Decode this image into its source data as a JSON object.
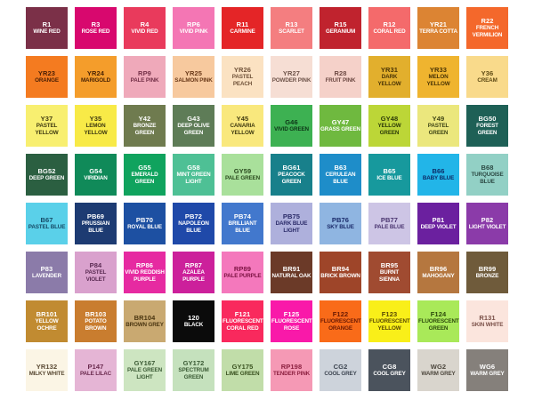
{
  "chart_data": {
    "type": "table",
    "title": "Marker color swatch chart",
    "layout": {
      "columns": 10,
      "rows": 8,
      "background": "#ffffff"
    },
    "swatches": [
      {
        "code": "R1",
        "name": "WINE RED",
        "bg": "#7B3048",
        "text": "#FFFFFF"
      },
      {
        "code": "R3",
        "name": "ROSE RED",
        "bg": "#D8086E",
        "text": "#FFFFFF"
      },
      {
        "code": "R4",
        "name": "VIVID RED",
        "bg": "#E93A5C",
        "text": "#FFFFFF"
      },
      {
        "code": "RP6",
        "name": "VIVID PINK",
        "bg": "#F476B4",
        "text": "#FFFFFF"
      },
      {
        "code": "R11",
        "name": "CARMINE",
        "bg": "#E42527",
        "text": "#FFFFFF"
      },
      {
        "code": "R13",
        "name": "SCARLET",
        "bg": "#F47E80",
        "text": "#FFFFFF"
      },
      {
        "code": "R15",
        "name": "GERANIUM",
        "bg": "#C0232E",
        "text": "#FFFFFF"
      },
      {
        "code": "R12",
        "name": "CORAL RED",
        "bg": "#F46A6B",
        "text": "#FFFFFF"
      },
      {
        "code": "YR21",
        "name": "TERRA COTTA",
        "bg": "#DC8433",
        "text": "#FFFFFF"
      },
      {
        "code": "R22",
        "name": "FRENCH VERMILION",
        "bg": "#F4682B",
        "text": "#FFFFFF"
      },
      {
        "code": "YR23",
        "name": "ORANGE",
        "bg": "#F47B20",
        "text": "#4A1F05"
      },
      {
        "code": "YR24",
        "name": "MARIGOLD",
        "bg": "#F49D2B",
        "text": "#4A2405"
      },
      {
        "code": "RP9",
        "name": "PALE PINK",
        "bg": "#EFA9BA",
        "text": "#743048"
      },
      {
        "code": "YR25",
        "name": "SALMON PINK",
        "bg": "#F7C99E",
        "text": "#6B3A1A"
      },
      {
        "code": "YR26",
        "name": "PASTEL PEACH",
        "bg": "#FBE2C2",
        "text": "#6F5138"
      },
      {
        "code": "YR27",
        "name": "POWDER PINK",
        "bg": "#F6DED4",
        "text": "#6E544A"
      },
      {
        "code": "R28",
        "name": "FRUIT PINK",
        "bg": "#F5D1C9",
        "text": "#6E4A44"
      },
      {
        "code": "YR31",
        "name": "DARK YELLOW",
        "bg": "#E2AF2D",
        "text": "#4A3405"
      },
      {
        "code": "YR33",
        "name": "MELON YELLOW",
        "bg": "#EFB42F",
        "text": "#4A3405"
      },
      {
        "code": "Y36",
        "name": "CREAM",
        "bg": "#F9DA8B",
        "text": "#5E4A14"
      },
      {
        "code": "Y37",
        "name": "PASTEL YELLOW",
        "bg": "#F8EF70",
        "text": "#3F3A10"
      },
      {
        "code": "Y35",
        "name": "LEMON YELLOW",
        "bg": "#F8EA47",
        "text": "#3F3A10"
      },
      {
        "code": "Y42",
        "name": "BRONZE GREEN",
        "bg": "#6F7B4F",
        "text": "#FFFFFF"
      },
      {
        "code": "G43",
        "name": "DEEP OLIVE GREEN",
        "bg": "#5E7C57",
        "text": "#FFFFFF"
      },
      {
        "code": "Y45",
        "name": "CANARIA YELLOW",
        "bg": "#F9E87D",
        "text": "#3F3A10"
      },
      {
        "code": "G46",
        "name": "VIVID GREEN",
        "bg": "#3DB152",
        "text": "#0D3517"
      },
      {
        "code": "GY47",
        "name": "GRASS GREEN",
        "bg": "#6FB93F",
        "text": "#FFFFFF"
      },
      {
        "code": "GY48",
        "name": "YELLOW GREEN",
        "bg": "#BCD637",
        "text": "#2C3A08"
      },
      {
        "code": "Y49",
        "name": "PASTEL GREEN",
        "bg": "#EBE77D",
        "text": "#3E4414"
      },
      {
        "code": "BG50",
        "name": "FOREST GREEN",
        "bg": "#1E6056",
        "text": "#FFFFFF"
      },
      {
        "code": "BG52",
        "name": "DEEP GREEN",
        "bg": "#2B5F41",
        "text": "#FFFFFF"
      },
      {
        "code": "G54",
        "name": "VIRIDIAN",
        "bg": "#108A59",
        "text": "#FFFFFF"
      },
      {
        "code": "G55",
        "name": "EMERALD GREEN",
        "bg": "#10A35E",
        "text": "#FFFFFF"
      },
      {
        "code": "G58",
        "name": "MINT GREEN LIGHT",
        "bg": "#4EC095",
        "text": "#FFFFFF"
      },
      {
        "code": "GY59",
        "name": "PALE GREEN",
        "bg": "#A9E09B",
        "text": "#2A4A1E"
      },
      {
        "code": "BG61",
        "name": "PEACOCK GREEN",
        "bg": "#18808B",
        "text": "#FFFFFF"
      },
      {
        "code": "B63",
        "name": "CERULEAN BLUE",
        "bg": "#1E8DC9",
        "text": "#FFFFFF"
      },
      {
        "code": "B65",
        "name": "ICE BLUE",
        "bg": "#17999D",
        "text": "#FFFFFF"
      },
      {
        "code": "B66",
        "name": "BABY BLUE",
        "bg": "#22B5E8",
        "text": "#0C2A66"
      },
      {
        "code": "B68",
        "name": "TURQUOISE BLUE",
        "bg": "#92D0C5",
        "text": "#2C4A44"
      },
      {
        "code": "B67",
        "name": "PASTEL BLUE",
        "bg": "#5AD0E9",
        "text": "#164A66"
      },
      {
        "code": "PB69",
        "name": "PRUSSIAN BLUE",
        "bg": "#1D3B72",
        "text": "#FFFFFF"
      },
      {
        "code": "PB70",
        "name": "ROYAL BLUE",
        "bg": "#1D50A2",
        "text": "#FFFFFF"
      },
      {
        "code": "PB72",
        "name": "NAPOLEON BLUE",
        "bg": "#1F49A9",
        "text": "#FFFFFF"
      },
      {
        "code": "PB74",
        "name": "BRILLIANT BLUE",
        "bg": "#4278CD",
        "text": "#FFFFFF"
      },
      {
        "code": "PB75",
        "name": "DARK BLUE LIGHT",
        "bg": "#AEB0DC",
        "text": "#2A2A68"
      },
      {
        "code": "PB76",
        "name": "SKY BLUE",
        "bg": "#8FB5E1",
        "text": "#1A2A6A"
      },
      {
        "code": "PB77",
        "name": "PALE BLUE",
        "bg": "#CDC5E5",
        "text": "#4A3570"
      },
      {
        "code": "P81",
        "name": "DEEP VIOLET",
        "bg": "#6B209F",
        "text": "#FFFFFF"
      },
      {
        "code": "P82",
        "name": "LIGHT VIOLET",
        "bg": "#8B3BA9",
        "text": "#FFFFFF"
      },
      {
        "code": "P83",
        "name": "LAVENDER",
        "bg": "#8B7BA9",
        "text": "#FFFFFF"
      },
      {
        "code": "P84",
        "name": "PASTEL VIOLET",
        "bg": "#D9A1CD",
        "text": "#5A2A52"
      },
      {
        "code": "RP86",
        "name": "VIVID REDDISH PURPLE",
        "bg": "#E62AA1",
        "text": "#FFFFFF"
      },
      {
        "code": "RP87",
        "name": "AZALEA PURPLE",
        "bg": "#CC209B",
        "text": "#FFFFFF"
      },
      {
        "code": "RP89",
        "name": "PALE PURPLE",
        "bg": "#F478BC",
        "text": "#7C1242"
      },
      {
        "code": "BR91",
        "name": "NATURAL OAK",
        "bg": "#6B3A28",
        "text": "#FFFFFF"
      },
      {
        "code": "BR94",
        "name": "BRICK BROWN",
        "bg": "#9E4529",
        "text": "#FFFFFF"
      },
      {
        "code": "BR95",
        "name": "BURNT SIENNA",
        "bg": "#A04B31",
        "text": "#FFFFFF"
      },
      {
        "code": "BR96",
        "name": "MAHOGANY",
        "bg": "#B5773F",
        "text": "#FFFFFF"
      },
      {
        "code": "BR99",
        "name": "BRONZE",
        "bg": "#6F5B3B",
        "text": "#FFFFFF"
      },
      {
        "code": "BR101",
        "name": "YELLOW OCHRE",
        "bg": "#C18B31",
        "text": "#FFFFFF"
      },
      {
        "code": "BR103",
        "name": "POTATO BROWN",
        "bg": "#C97D2F",
        "text": "#FFFFFF"
      },
      {
        "code": "BR104",
        "name": "BROWN GREY",
        "bg": "#C9A971",
        "text": "#4A3510"
      },
      {
        "code": "120",
        "name": "BLACK",
        "bg": "#0B0B0B",
        "text": "#FFFFFF"
      },
      {
        "code": "F121",
        "name": "FLUORESCENT CORAL RED",
        "bg": "#F9295D",
        "text": "#FFFFFF"
      },
      {
        "code": "F125",
        "name": "FLUORESCENT ROSE",
        "bg": "#F919A9",
        "text": "#FFFFFF"
      },
      {
        "code": "F122",
        "name": "FLUORESCENT ORANGE",
        "bg": "#F96B19",
        "text": "#6A1A04"
      },
      {
        "code": "F123",
        "name": "FLUORESCENT YELLOW",
        "bg": "#F9EF19",
        "text": "#5A4A04"
      },
      {
        "code": "F124",
        "name": "FLUORESCENT GREEN",
        "bg": "#A9E959",
        "text": "#2C4A0C"
      },
      {
        "code": "R131",
        "name": "SKIN WHITE",
        "bg": "#FBE5DD",
        "text": "#7A5048"
      },
      {
        "code": "YR132",
        "name": "MILKY WHITE",
        "bg": "#FBF5E5",
        "text": "#5A4A34"
      },
      {
        "code": "P147",
        "name": "PALE LILAC",
        "bg": "#E5B5D5",
        "text": "#6A2A4E"
      },
      {
        "code": "GY167",
        "name": "PALE GREEN LIGHT",
        "bg": "#CDE5C1",
        "text": "#3A5A34"
      },
      {
        "code": "GY172",
        "name": "SPECTRUM GREEN",
        "bg": "#C5E1BD",
        "text": "#3A5A34"
      },
      {
        "code": "GY175",
        "name": "LIME GREEN",
        "bg": "#C1DDA9",
        "text": "#3A5220"
      },
      {
        "code": "RP198",
        "name": "TENDER PINK",
        "bg": "#F599B5",
        "text": "#8C2040"
      },
      {
        "code": "CG2",
        "name": "COOL GREY",
        "bg": "#CDD3DB",
        "text": "#3C4450"
      },
      {
        "code": "CG8",
        "name": "COOL GREY",
        "bg": "#4B535D",
        "text": "#FFFFFF"
      },
      {
        "code": "WG2",
        "name": "WARM GREY",
        "bg": "#D9D5CD",
        "text": "#4C463C"
      },
      {
        "code": "WG6",
        "name": "WARM GREY",
        "bg": "#85807B",
        "text": "#FFFFFF"
      }
    ]
  }
}
